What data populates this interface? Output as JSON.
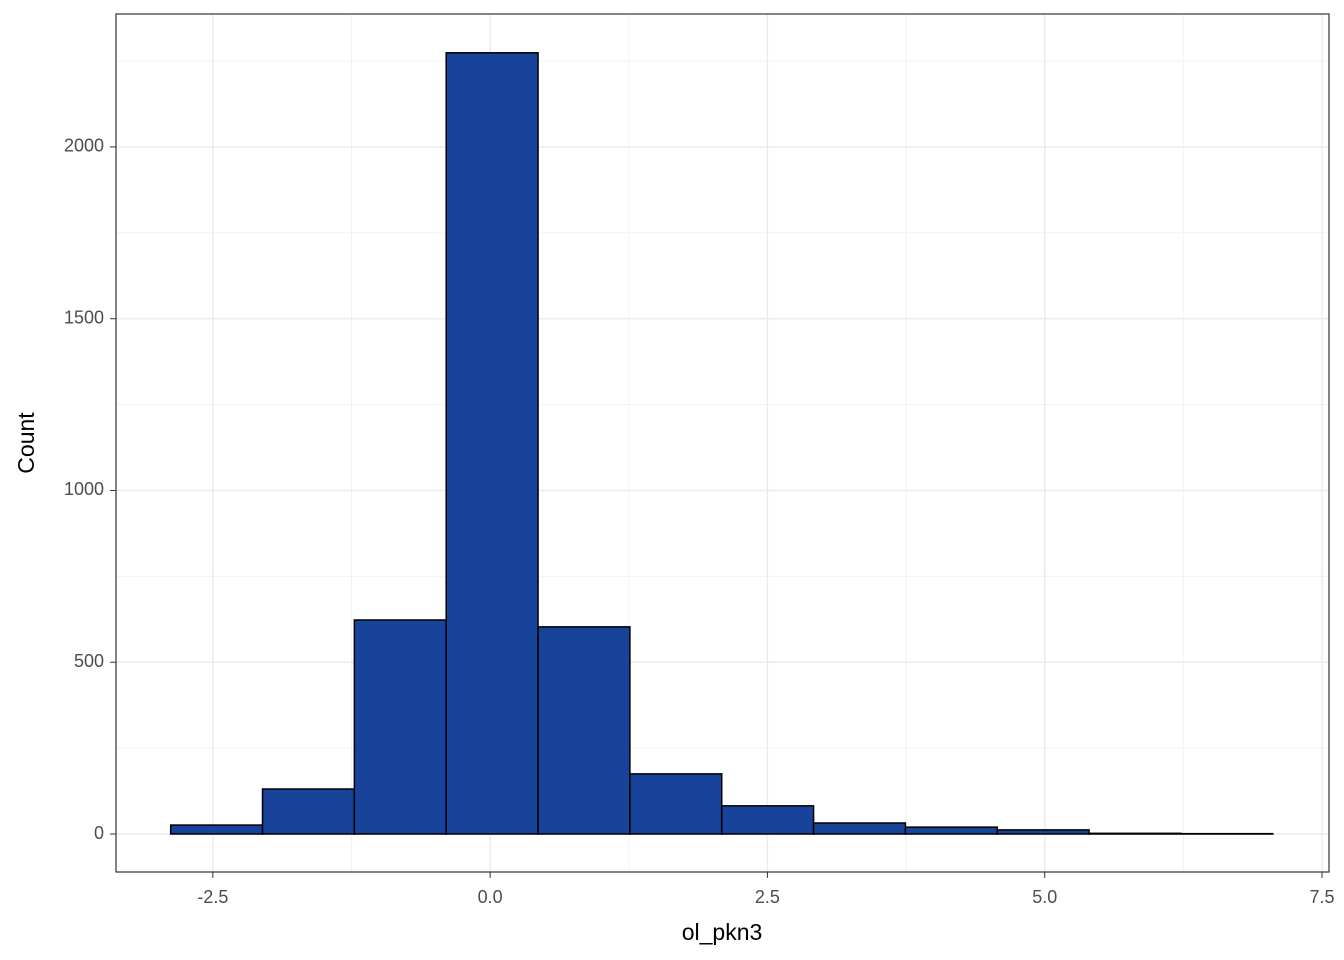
{
  "chart_data": {
    "type": "histogram",
    "x_label": "ol_pkn3",
    "y_label": "Count",
    "bins": [
      -2.88,
      -2.052,
      -1.224,
      -0.396,
      0.432,
      1.26,
      2.088,
      2.916,
      3.744,
      4.572,
      5.4,
      6.228,
      7.056
    ],
    "values": [
      26,
      131,
      623,
      2274,
      603,
      175,
      82,
      32,
      20,
      12,
      2,
      1
    ],
    "color": "#18439a",
    "edge_color": "#000000",
    "xlim": [
      -3.373,
      7.563
    ],
    "xticks": [
      -2.5,
      {
        "value": 0,
        "label": "0.0"
      },
      2.5,
      {
        "value": 5,
        "label": "5.0"
      },
      7.5
    ],
    "ylim": [
      -110.6,
      2387
    ],
    "yticks": [
      0,
      500,
      1000,
      1500,
      2000
    ],
    "grid": true
  }
}
